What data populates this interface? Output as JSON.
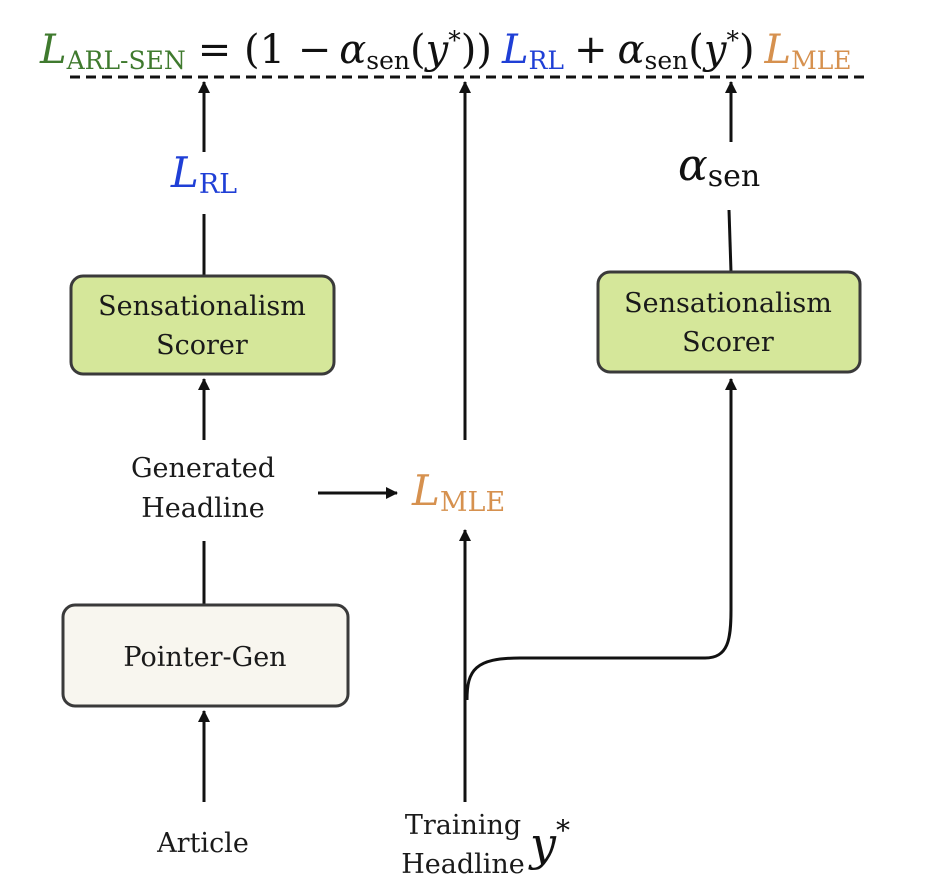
{
  "colors": {
    "green": "#3f7a2e",
    "blue": "#1f3fd6",
    "orange": "#d6914f",
    "black": "#111111",
    "scorer_fill": "#d5e79a",
    "pointer_fill": "#f8f6ef",
    "box_stroke": "#3a3a3a"
  },
  "formula": {
    "lhs_letter": "L",
    "lhs_sub": "ARL-SEN",
    "eq_open": "= (1 −",
    "alpha1": "α",
    "alpha1_sub": "sen",
    "paren1_open": "(",
    "y1": "y",
    "star1": "*",
    "paren1_close": "))",
    "lrl_letter": "L",
    "lrl_sub": "RL",
    "plus": "+",
    "alpha2": "α",
    "alpha2_sub": "sen",
    "paren2_open": "(",
    "y2": "y",
    "star2": "*",
    "paren2_close": ")",
    "lmle_letter": "L",
    "lmle_sub": "MLE"
  },
  "left_column": {
    "loss_letter": "L",
    "loss_sub": "RL",
    "scorer_line1": "Sensationalism",
    "scorer_line2": "Scorer",
    "generated_line1": "Generated",
    "generated_line2": "Headline",
    "pointer_gen": "Pointer-Gen",
    "article": "Article"
  },
  "middle_column": {
    "loss_letter": "L",
    "loss_sub": "MLE",
    "training_line1": "Training",
    "training_line2": "Headline",
    "y_letter": "y",
    "y_star": "*"
  },
  "right_column": {
    "alpha": "α",
    "alpha_sub": "sen",
    "scorer_line1": "Sensationalism",
    "scorer_line2": "Scorer"
  }
}
